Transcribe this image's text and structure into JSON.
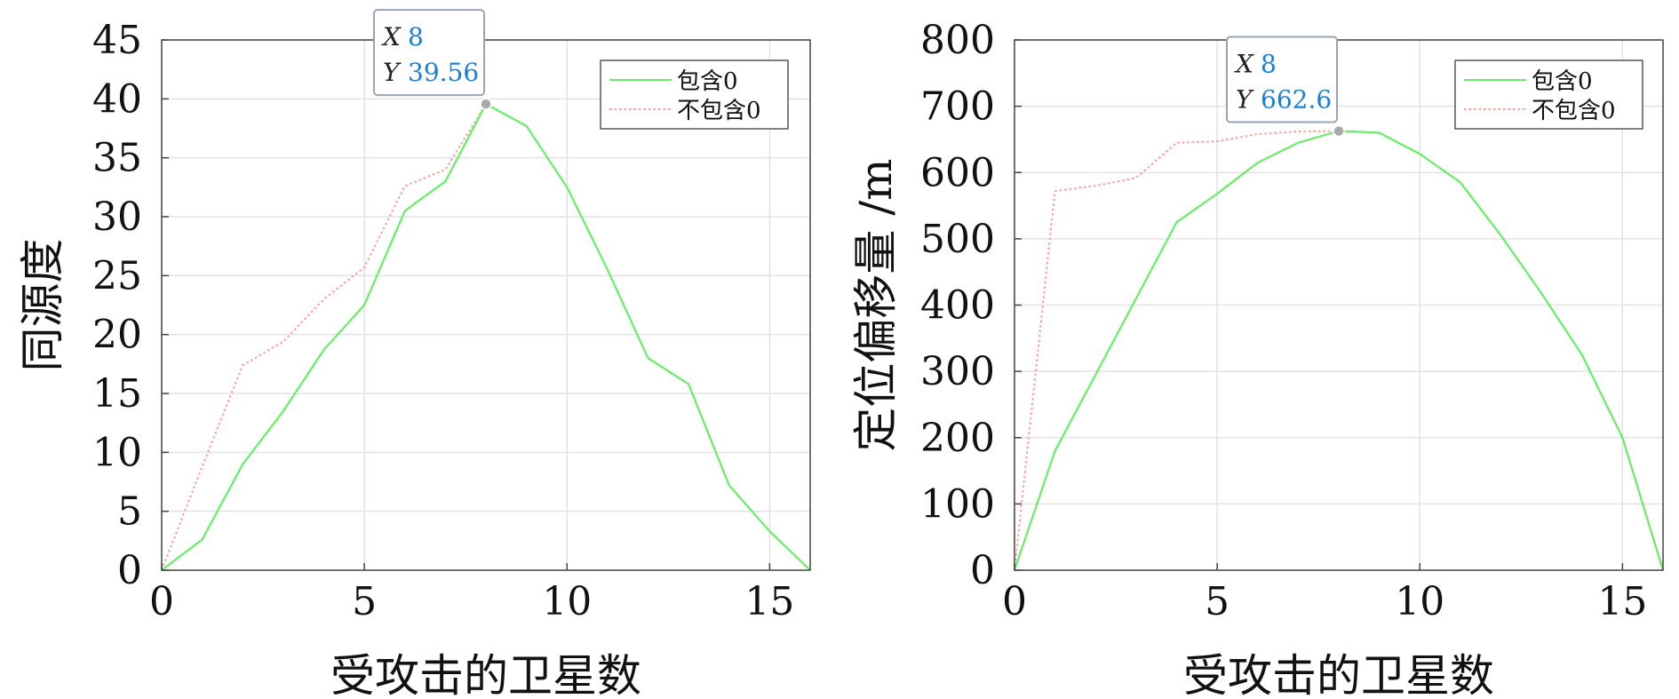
{
  "chart_data": [
    {
      "type": "line",
      "xlabel": "受攻击的卫星数",
      "ylabel": "同源度",
      "xlim": [
        0,
        16
      ],
      "ylim": [
        0,
        45
      ],
      "xticks": [
        0,
        5,
        10,
        15
      ],
      "yticks": [
        0,
        5,
        10,
        15,
        20,
        25,
        30,
        35,
        40,
        45
      ],
      "grid": true,
      "legend_position": "top-right",
      "x": [
        0,
        1,
        2,
        3,
        4,
        5,
        6,
        7,
        8,
        9,
        10,
        11,
        12,
        13,
        14,
        15,
        16
      ],
      "series": [
        {
          "name": "包含0",
          "color": "#66ee66",
          "style": "solid",
          "values": [
            0,
            2.6,
            9,
            13.5,
            18.7,
            22.5,
            30.5,
            33,
            39.56,
            37.7,
            32.5,
            25.5,
            18,
            15.8,
            7.2,
            3.3,
            0
          ]
        },
        {
          "name": "不包含0",
          "color": "#ff9a9a",
          "style": "dotted",
          "values": [
            0,
            8.8,
            17.4,
            19.4,
            23,
            25.7,
            32.6,
            34,
            39.56,
            37.7,
            32.5,
            25.5,
            18,
            15.8,
            7.2,
            3.3,
            0
          ]
        }
      ],
      "datatip": {
        "x_label": "X",
        "y_label": "Y",
        "x": "8",
        "y": "39.56"
      }
    },
    {
      "type": "line",
      "xlabel": "受攻击的卫星数",
      "ylabel": "定位偏移量 /m",
      "xlim": [
        0,
        16
      ],
      "ylim": [
        0,
        800
      ],
      "xticks": [
        0,
        5,
        10,
        15
      ],
      "yticks": [
        0,
        100,
        200,
        300,
        400,
        500,
        600,
        700,
        800
      ],
      "grid": true,
      "legend_position": "top-right",
      "x": [
        0,
        1,
        2,
        3,
        4,
        5,
        6,
        7,
        8,
        9,
        10,
        11,
        12,
        13,
        14,
        15,
        16
      ],
      "series": [
        {
          "name": "包含0",
          "color": "#66ee66",
          "style": "solid",
          "values": [
            0,
            180,
            295,
            410,
            525,
            568,
            615,
            645,
            662.6,
            660,
            628,
            585,
            505,
            418,
            325,
            200,
            0
          ]
        },
        {
          "name": "不包含0",
          "color": "#ff9a9a",
          "style": "dotted",
          "values": [
            0,
            572,
            580,
            592,
            645,
            647,
            658,
            662,
            662.6,
            660,
            628,
            585,
            505,
            418,
            325,
            200,
            0
          ]
        }
      ],
      "datatip": {
        "x_label": "X",
        "y_label": "Y",
        "x": "8",
        "y": "662.6"
      }
    }
  ]
}
